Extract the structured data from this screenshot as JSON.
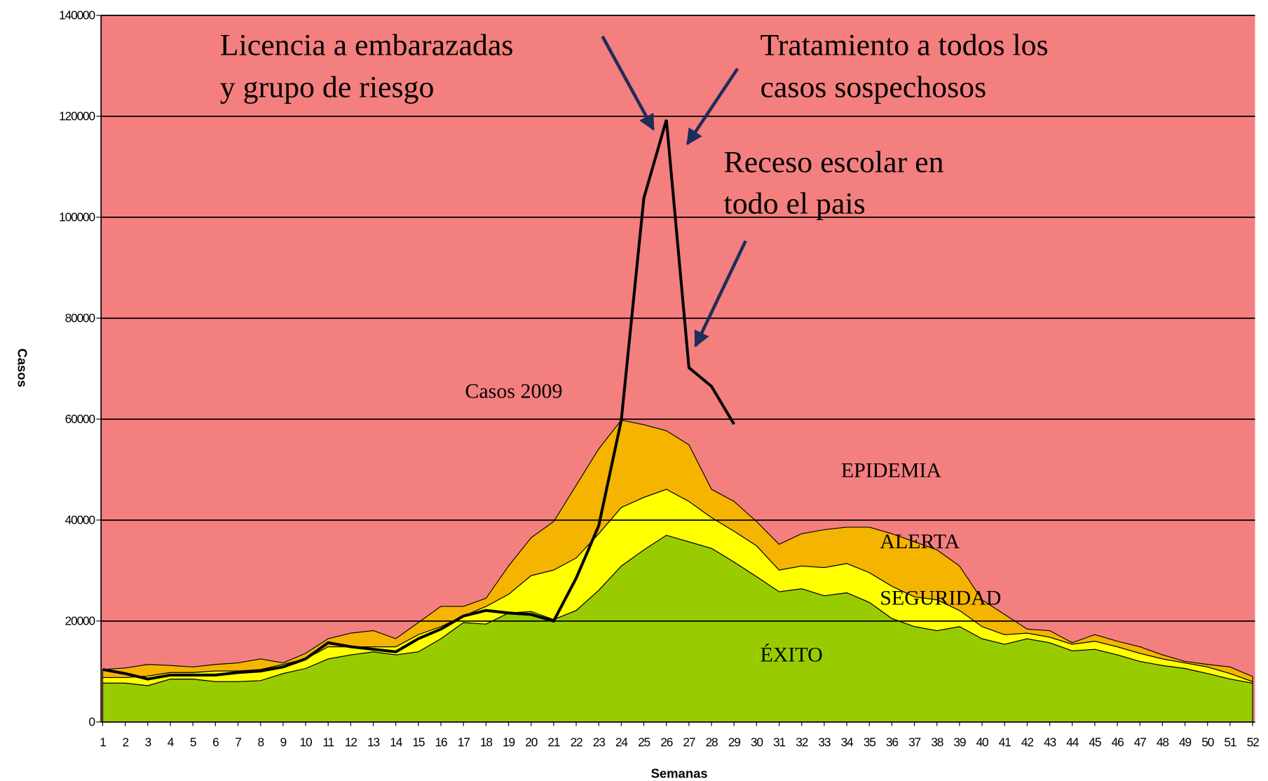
{
  "chart_data": {
    "type": "endemic-channel",
    "y_label": "Casos",
    "x_label": "Semanas",
    "x": [
      1,
      2,
      3,
      4,
      5,
      6,
      7,
      8,
      9,
      10,
      11,
      12,
      13,
      14,
      15,
      16,
      17,
      18,
      19,
      20,
      21,
      22,
      23,
      24,
      25,
      26,
      27,
      28,
      29,
      30,
      31,
      32,
      33,
      34,
      35,
      36,
      37,
      38,
      39,
      40,
      41,
      42,
      43,
      44,
      45,
      46,
      47,
      48,
      49,
      50,
      51,
      52
    ],
    "xlim": [
      1,
      52
    ],
    "ylim": [
      0,
      140000
    ],
    "yticks": [
      0,
      20000,
      40000,
      60000,
      80000,
      100000,
      120000,
      140000
    ],
    "grid": true,
    "background_zone": {
      "name": "EPIDEMIA",
      "color": "#f47f7f"
    },
    "series": [
      {
        "name": "ÉXITO",
        "color": "#99cc00",
        "stacked": true,
        "values": [
          7700,
          7700,
          7200,
          8500,
          8500,
          8000,
          8000,
          8200,
          9600,
          10600,
          12500,
          13300,
          13900,
          13300,
          13900,
          16500,
          19700,
          19400,
          21600,
          21900,
          20300,
          22100,
          26100,
          30900,
          34100,
          37000,
          35700,
          34400,
          31700,
          28800,
          25800,
          26400,
          25000,
          25600,
          23700,
          20500,
          18900,
          18100,
          18900,
          16500,
          15400,
          16500,
          15700,
          14100,
          14400,
          13300,
          12000,
          11200,
          10600,
          9600,
          8500,
          7700
        ]
      },
      {
        "name": "SEGURIDAD",
        "color": "#ffff00",
        "stacked": true,
        "values": [
          1100,
          1100,
          1900,
          1300,
          1300,
          2100,
          2100,
          2200,
          1800,
          1900,
          2400,
          1600,
          1000,
          1600,
          3400,
          2400,
          1300,
          3500,
          3700,
          7100,
          9800,
          10400,
          11200,
          11600,
          10400,
          9100,
          8000,
          6100,
          6100,
          6100,
          4300,
          4500,
          5600,
          5800,
          5900,
          6400,
          5900,
          6100,
          3200,
          2400,
          1900,
          1100,
          1100,
          1300,
          1600,
          1600,
          1600,
          1300,
          1100,
          1300,
          1100,
          300
        ]
      },
      {
        "name": "ALERTA",
        "color": "#f5b400",
        "stacked": true,
        "values": [
          1600,
          1900,
          2300,
          1400,
          1100,
          1300,
          1600,
          2100,
          300,
          1100,
          1600,
          2700,
          3200,
          1600,
          2400,
          4000,
          1900,
          1600,
          5600,
          7500,
          9600,
          14400,
          16800,
          17300,
          14400,
          11600,
          11200,
          5600,
          5900,
          4800,
          5100,
          6400,
          7500,
          7200,
          9000,
          10400,
          10900,
          9900,
          8800,
          5300,
          4000,
          800,
          1300,
          300,
          1300,
          1100,
          1300,
          800,
          300,
          500,
          1300,
          1000
        ]
      },
      {
        "name": "Casos 2009",
        "color": "#000000",
        "stacked": false,
        "values": [
          10400,
          9600,
          8500,
          9300,
          9300,
          9300,
          9800,
          10100,
          10900,
          12500,
          15700,
          14900,
          14400,
          13900,
          16500,
          18400,
          21000,
          22100,
          21600,
          21300,
          20000,
          28500,
          38900,
          59800,
          103800,
          119300,
          70200,
          66500,
          59000,
          null,
          null,
          null,
          null,
          null,
          null,
          null,
          null,
          null,
          null,
          null,
          null,
          null,
          null,
          null,
          null,
          null,
          null,
          null,
          null,
          null,
          null,
          null
        ]
      }
    ],
    "annotations": [
      {
        "lines": [
          "Licencia a embarazadas",
          "y grupo de riesgo"
        ]
      },
      {
        "lines": [
          "Tratamiento a todos los",
          "casos sospechosos"
        ]
      },
      {
        "lines": [
          "Receso escolar en",
          "todo el pais"
        ]
      }
    ]
  }
}
